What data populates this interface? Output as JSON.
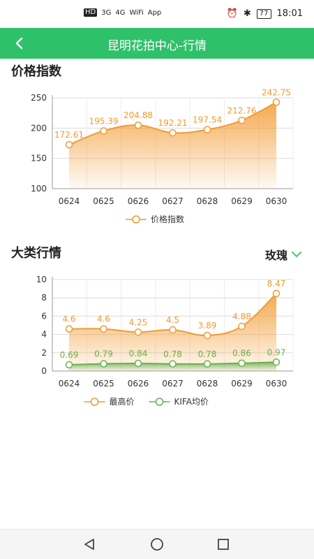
{
  "status_bar": {
    "left_items": [
      "HD",
      "3G",
      "4G",
      "WiFi",
      "App"
    ],
    "battery": "77",
    "time": "18:01"
  },
  "header": {
    "title": "昆明花拍中心-行情",
    "back_icon": "chevron-left-icon"
  },
  "section1": {
    "title": "价格指数"
  },
  "section2": {
    "title": "大类行情",
    "selector_value": "玫瑰"
  },
  "chart_data": [
    {
      "type": "area",
      "categories": [
        "0624",
        "0625",
        "0626",
        "0627",
        "0628",
        "0629",
        "0630"
      ],
      "series": [
        {
          "name": "价格指数",
          "values": [
            172.61,
            195.39,
            204.88,
            192.21,
            197.54,
            212.76,
            242.75
          ],
          "color": "#f39a2f"
        }
      ],
      "yticks": [
        100,
        150,
        200,
        250
      ],
      "ylim": [
        100,
        250
      ],
      "grid": true,
      "legend_position": "bottom"
    },
    {
      "type": "area",
      "categories": [
        "0624",
        "0625",
        "0626",
        "0627",
        "0628",
        "0629",
        "0630"
      ],
      "series": [
        {
          "name": "最高价",
          "values": [
            4.6,
            4.6,
            4.25,
            4.5,
            3.89,
            4.88,
            8.47
          ],
          "color": "#f39a2f"
        },
        {
          "name": "KIFA均价",
          "values": [
            0.69,
            0.79,
            0.84,
            0.78,
            0.78,
            0.86,
            0.97
          ],
          "color": "#6ab04c"
        }
      ],
      "yticks": [
        0,
        2,
        4,
        6,
        8,
        10
      ],
      "ylim": [
        0,
        10
      ],
      "grid": true,
      "legend_position": "bottom"
    }
  ],
  "navbar": {
    "icons": [
      "back-triangle-icon",
      "home-circle-icon",
      "recents-square-icon"
    ]
  }
}
